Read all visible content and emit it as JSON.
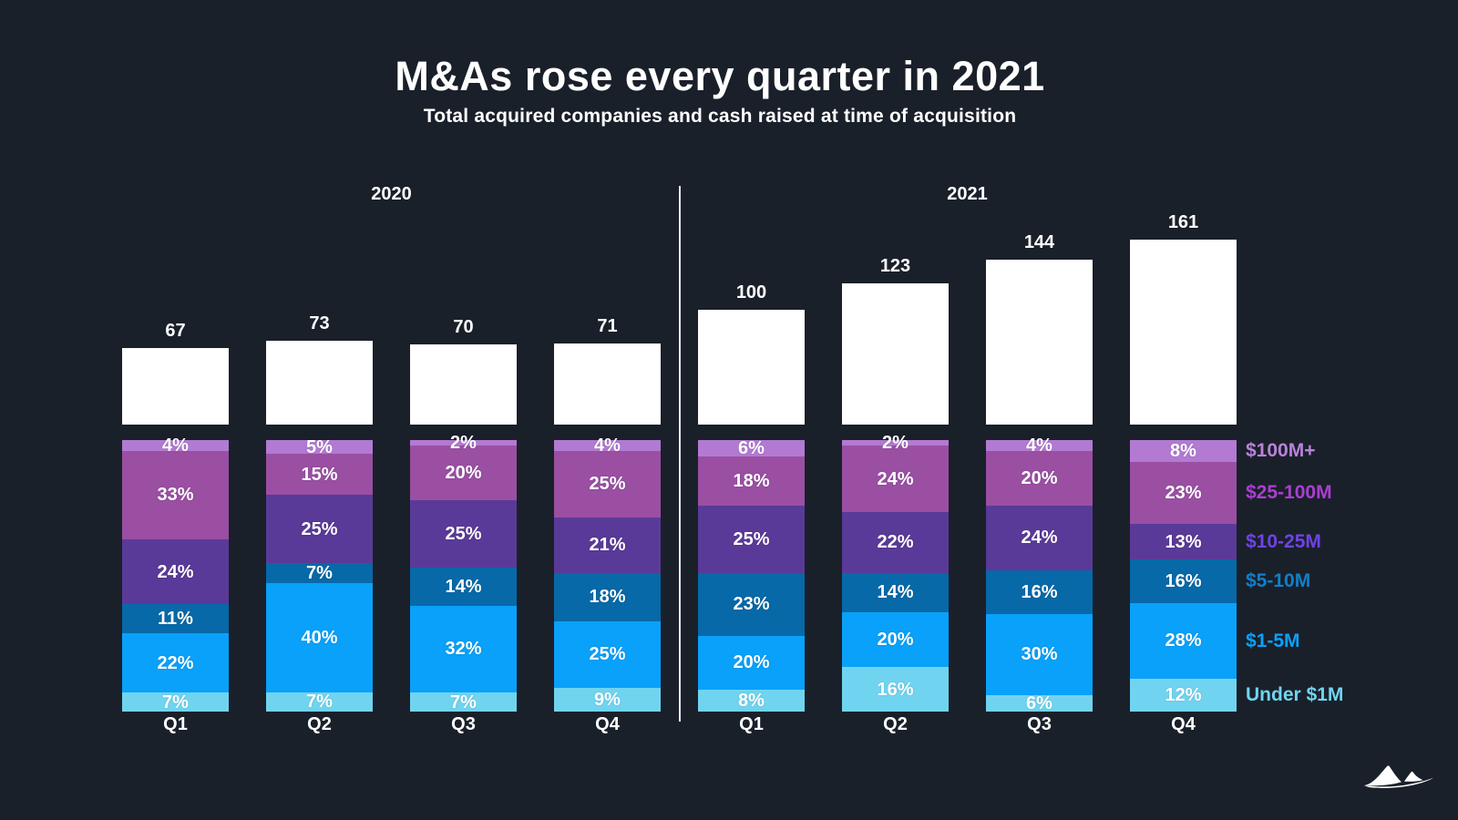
{
  "title": "M&As rose every quarter in 2021",
  "subtitle": "Total acquired companies and cash raised at time of acquisition",
  "background_color": "#1a202a",
  "text_color": "#ffffff",
  "divider_color": "#e9ebef",
  "total_bar_color": "#ffffff",
  "logo": "dune-logo",
  "chart_data": {
    "type": "bar",
    "title": "M&As rose every quarter in 2021",
    "subtitle": "Total acquired companies and cash raised at time of acquisition",
    "layout": "two year groups of stacked 100% columns with white total bars above; legend right, aligned to last column segments",
    "year_groups": [
      {
        "label": "2020",
        "column_indexes": [
          0,
          1,
          2,
          3
        ]
      },
      {
        "label": "2021",
        "column_indexes": [
          4,
          5,
          6,
          7
        ]
      }
    ],
    "quarter_labels": [
      "Q1",
      "Q2",
      "Q3",
      "Q4",
      "Q1",
      "Q2",
      "Q3",
      "Q4"
    ],
    "totals": [
      67,
      73,
      70,
      71,
      100,
      123,
      144,
      161
    ],
    "series": [
      {
        "name": "$100M+",
        "fill": "#b27ad2",
        "legend_color": "#b983da",
        "values_pct": [
          4,
          5,
          2,
          4,
          6,
          2,
          4,
          8
        ]
      },
      {
        "name": "$25-100M",
        "fill": "#9a4fa3",
        "legend_color": "#ab3ed2",
        "values_pct": [
          33,
          15,
          20,
          25,
          18,
          24,
          20,
          23
        ]
      },
      {
        "name": "$10-25M",
        "fill": "#5a3a98",
        "legend_color": "#6e43e8",
        "values_pct": [
          24,
          25,
          25,
          21,
          25,
          22,
          24,
          13
        ]
      },
      {
        "name": "$5-10M",
        "fill": "#0769a8",
        "legend_color": "#0f80cb",
        "values_pct": [
          11,
          7,
          14,
          18,
          23,
          14,
          16,
          16
        ]
      },
      {
        "name": "$1-5M",
        "fill": "#0aa1fa",
        "legend_color": "#0aa1fa",
        "values_pct": [
          22,
          40,
          32,
          25,
          20,
          20,
          30,
          28
        ]
      },
      {
        "name": "Under $1M",
        "fill": "#70d4f0",
        "legend_color": "#70d4f0",
        "values_pct": [
          7,
          7,
          7,
          9,
          8,
          16,
          6,
          12
        ]
      }
    ]
  }
}
